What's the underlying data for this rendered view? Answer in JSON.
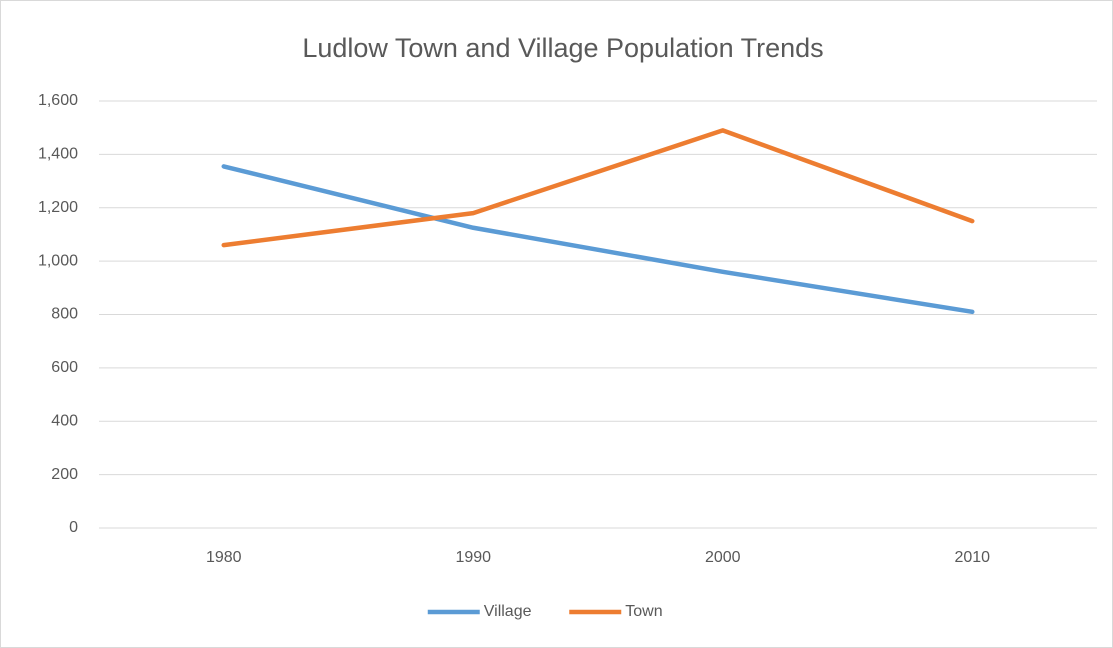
{
  "chart_data": {
    "type": "line",
    "title": "Ludlow Town and Village Population Trends",
    "categories": [
      "1980",
      "1990",
      "2000",
      "2010"
    ],
    "series": [
      {
        "name": "Village",
        "color": "#5b9bd5",
        "values": [
          1355,
          1125,
          960,
          810
        ]
      },
      {
        "name": "Town",
        "color": "#ed7d31",
        "values": [
          1060,
          1180,
          1490,
          1150
        ]
      }
    ],
    "ylim": [
      0,
      1600
    ],
    "yticks": [
      0,
      200,
      400,
      600,
      800,
      {
        "value": 1000,
        "label": "1,000"
      },
      {
        "value": 1200,
        "label": "1,200"
      },
      {
        "value": 1400,
        "label": "1,400"
      },
      {
        "value": 1600,
        "label": "1,600"
      }
    ],
    "grid": true,
    "legend": "bottom"
  }
}
